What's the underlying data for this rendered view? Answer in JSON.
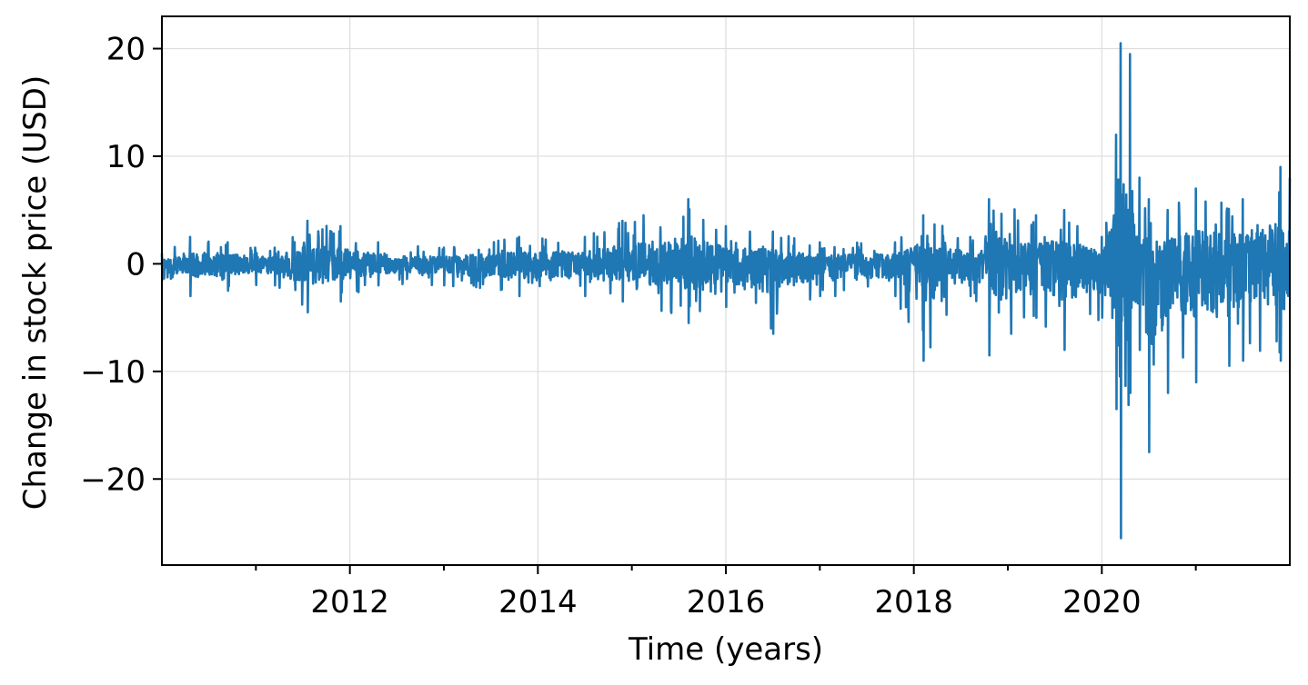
{
  "chart_data": {
    "type": "line",
    "title": "",
    "xlabel": "Time (years)",
    "ylabel": "Change in stock price (USD)",
    "xlim": [
      2010.0,
      2022.0
    ],
    "ylim": [
      -28,
      23
    ],
    "x_ticks": [
      2012,
      2014,
      2016,
      2018,
      2020
    ],
    "x_minor_ticks": [
      2011,
      2013,
      2015,
      2017,
      2019,
      2021
    ],
    "y_ticks": [
      20,
      10,
      0,
      -10,
      -20
    ],
    "x_tick_labels": [
      "2012",
      "2014",
      "2016",
      "2018",
      "2020"
    ],
    "y_tick_labels": [
      "20",
      "10",
      "0",
      "−10",
      "−20"
    ],
    "grid": true,
    "color": "#1f77b4",
    "series": [
      {
        "name": "",
        "x_start": 2010.0,
        "x_step": 0.004,
        "note_values": "daily price change (USD), estimated",
        "envelope": [
          {
            "x": 2010.0,
            "up": 1.0,
            "down": -1.5
          },
          {
            "x": 2010.3,
            "up": 2.5,
            "down": -3.0
          },
          {
            "x": 2010.7,
            "up": 2.0,
            "down": -2.5
          },
          {
            "x": 2011.2,
            "up": 1.5,
            "down": -2.0
          },
          {
            "x": 2011.55,
            "up": 4.0,
            "down": -4.5
          },
          {
            "x": 2011.9,
            "up": 3.5,
            "down": -3.5
          },
          {
            "x": 2012.3,
            "up": 2.0,
            "down": -2.0
          },
          {
            "x": 2013.0,
            "up": 1.5,
            "down": -2.0
          },
          {
            "x": 2013.8,
            "up": 2.5,
            "down": -3.0
          },
          {
            "x": 2014.5,
            "up": 2.5,
            "down": -3.0
          },
          {
            "x": 2014.9,
            "up": 4.0,
            "down": -3.5
          },
          {
            "x": 2015.6,
            "up": 6.0,
            "down": -5.5
          },
          {
            "x": 2016.0,
            "up": 3.5,
            "down": -4.0
          },
          {
            "x": 2016.5,
            "up": 3.0,
            "down": -6.5
          },
          {
            "x": 2017.0,
            "up": 2.0,
            "down": -3.0
          },
          {
            "x": 2017.8,
            "up": 2.0,
            "down": -3.0
          },
          {
            "x": 2018.1,
            "up": 4.5,
            "down": -9.0
          },
          {
            "x": 2018.6,
            "up": 2.5,
            "down": -3.0
          },
          {
            "x": 2018.8,
            "up": 6.0,
            "down": -8.5
          },
          {
            "x": 2019.3,
            "up": 4.5,
            "down": -5.0
          },
          {
            "x": 2019.6,
            "up": 5.0,
            "down": -8.0
          },
          {
            "x": 2020.0,
            "up": 2.5,
            "down": -5.0
          },
          {
            "x": 2020.15,
            "up": 12.0,
            "down": -13.5
          },
          {
            "x": 2020.2,
            "up": 20.5,
            "down": -25.5
          },
          {
            "x": 2020.3,
            "up": 19.5,
            "down": -12.0
          },
          {
            "x": 2020.4,
            "up": 8.0,
            "down": -8.0
          },
          {
            "x": 2020.5,
            "up": 6.0,
            "down": -17.5
          },
          {
            "x": 2020.7,
            "up": 5.0,
            "down": -12.0
          },
          {
            "x": 2021.0,
            "up": 7.0,
            "down": -11.0
          },
          {
            "x": 2021.5,
            "up": 6.0,
            "down": -9.0
          },
          {
            "x": 2021.9,
            "up": 9.0,
            "down": -9.0
          },
          {
            "x": 2022.0,
            "up": 8.0,
            "down": -5.0
          }
        ]
      }
    ]
  }
}
